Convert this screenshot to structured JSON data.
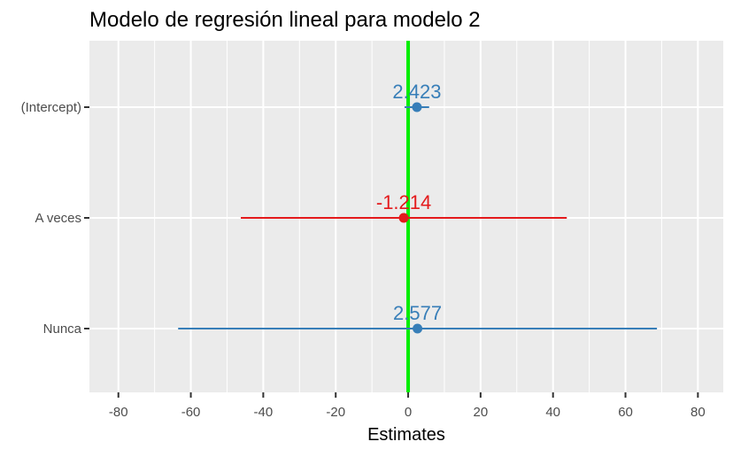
{
  "chart_data": {
    "type": "forest",
    "title": "Modelo de regresión lineal para modelo 2",
    "xlabel": "Estimates",
    "ylabel": "",
    "xlim": [
      -88,
      87
    ],
    "x_ticks": [
      -80,
      -60,
      -40,
      -20,
      0,
      20,
      40,
      60,
      80
    ],
    "x_tick_labels": [
      "-80",
      "-60",
      "-40",
      "-20",
      "0",
      "20",
      "40",
      "60",
      "80"
    ],
    "grid": true,
    "reference_line": {
      "x": 0,
      "color": "#00ee00"
    },
    "colors": {
      "positive": "#377eb8",
      "negative": "#e41a1c",
      "panel_bg": "#ebebeb",
      "grid": "#ffffff"
    },
    "terms": [
      {
        "label": "(Intercept)",
        "estimate": 2.423,
        "estimate_label": "2.423",
        "ci_low": -1.0,
        "ci_high": 5.8
      },
      {
        "label": "A veces",
        "estimate": -1.214,
        "estimate_label": "-1.214",
        "ci_low": -46.2,
        "ci_high": 43.8
      },
      {
        "label": "Nunca",
        "estimate": 2.577,
        "estimate_label": "2.577",
        "ci_low": -63.5,
        "ci_high": 68.7
      }
    ]
  }
}
